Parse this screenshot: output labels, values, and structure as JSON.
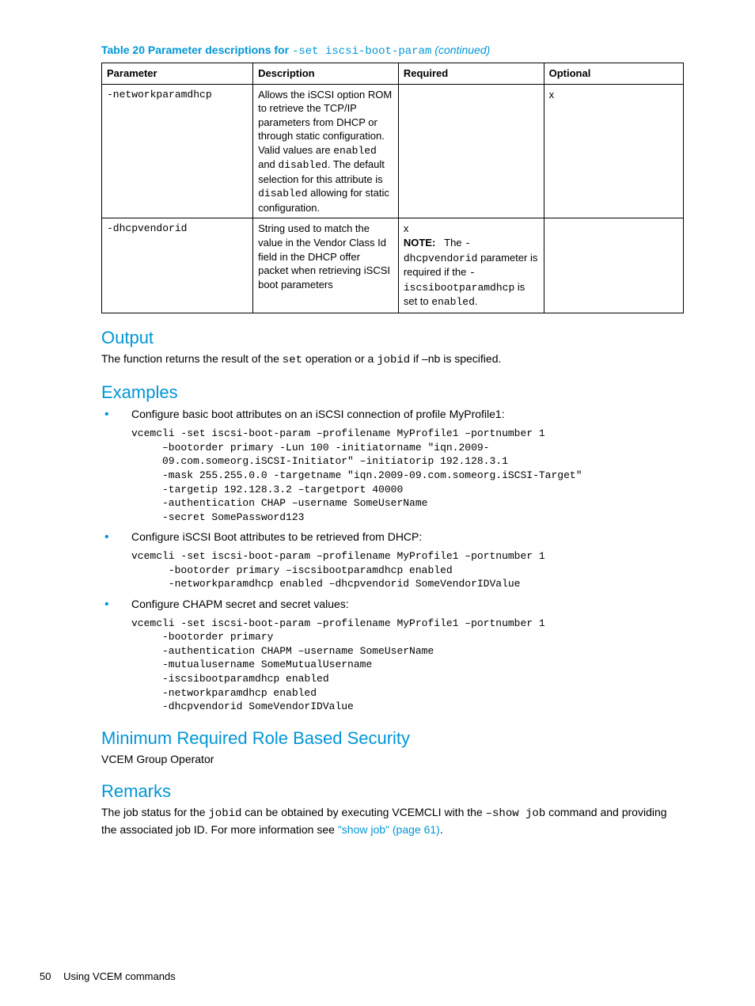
{
  "table": {
    "caption_prefix": "Table 20 Parameter descriptions for ",
    "caption_code": "-set iscsi-boot-param",
    "caption_suffix": " (continued)",
    "headers": {
      "param": "Parameter",
      "desc": "Description",
      "req": "Required",
      "opt": "Optional"
    },
    "rows": {
      "r1": {
        "param": "-networkparamdhcp",
        "desc_1": "Allows the iSCSI option ROM to retrieve the TCP/IP parameters from DHCP or through static configuration. Valid values are ",
        "desc_code1": "enabled",
        "desc_2": " and ",
        "desc_code2": "disabled",
        "desc_3": ". The default selection for this attribute is ",
        "desc_code3": "disabled",
        "desc_4": " allowing for static configuration.",
        "req": "",
        "opt": "x"
      },
      "r2": {
        "param": "-dhcpvendorid",
        "desc": "String used to match the value in the Vendor Class Id field in the DHCP offer packet when retrieving iSCSI boot parameters",
        "req_x": "x",
        "req_note_label": "NOTE:",
        "req_note_1": "The ",
        "req_note_code1": "-dhcpvendorid",
        "req_note_2": " parameter is required if the ",
        "req_note_code2": "-iscsibootparamdhcp",
        "req_note_3": " is set to ",
        "req_note_code3": "enabled",
        "req_note_4": ".",
        "opt": ""
      }
    }
  },
  "output": {
    "heading": "Output",
    "text_1": "The function returns the result of the ",
    "code1": "set",
    "text_2": " operation or a ",
    "code2": "jobid",
    "text_3": " if –nb is specified."
  },
  "examples": {
    "heading": "Examples",
    "items": {
      "i1": "Configure basic boot attributes on an iSCSI connection of profile MyProfile1:",
      "c1": "vcemcli -set iscsi-boot-param –profilename MyProfile1 –portnumber 1\n     –bootorder primary -Lun 100 -initiatorname \"iqn.2009-\n     09.com.someorg.iSCSI-Initiator\" –initiatorip 192.128.3.1\n     -mask 255.255.0.0 -targetname \"iqn.2009-09.com.someorg.iSCSI-Target\"\n     -targetip 192.128.3.2 –targetport 40000\n     -authentication CHAP –username SomeUserName\n     -secret SomePassword123",
      "i2": "Configure iSCSI Boot attributes to be retrieved from DHCP:",
      "c2": "vcemcli -set iscsi-boot-param –profilename MyProfile1 –portnumber 1\n      -bootorder primary –iscsibootparamdhcp enabled\n      -networkparamdhcp enabled –dhcpvendorid SomeVendorIDValue",
      "i3": "Configure CHAPM secret and secret values:",
      "c3": "vcemcli -set iscsi-boot-param –profilename MyProfile1 –portnumber 1\n     -bootorder primary\n     -authentication CHAPM –username SomeUserName\n     -mutualusername SomeMutualUsername\n     -iscsibootparamdhcp enabled\n     -networkparamdhcp enabled\n     -dhcpvendorid SomeVendorIDValue"
    }
  },
  "security": {
    "heading": "Minimum Required Role Based Security",
    "text": "VCEM Group Operator"
  },
  "remarks": {
    "heading": "Remarks",
    "text_1": "The job status for the ",
    "code1": "jobid",
    "text_2": " can be obtained by executing VCEMCLI with the ",
    "code2": "–show job",
    "text_3": " command and providing the associated job ID. For more information see ",
    "link": "\"show job\" (page 61)",
    "text_4": "."
  },
  "footer": {
    "page": "50",
    "section": "Using VCEM commands"
  }
}
